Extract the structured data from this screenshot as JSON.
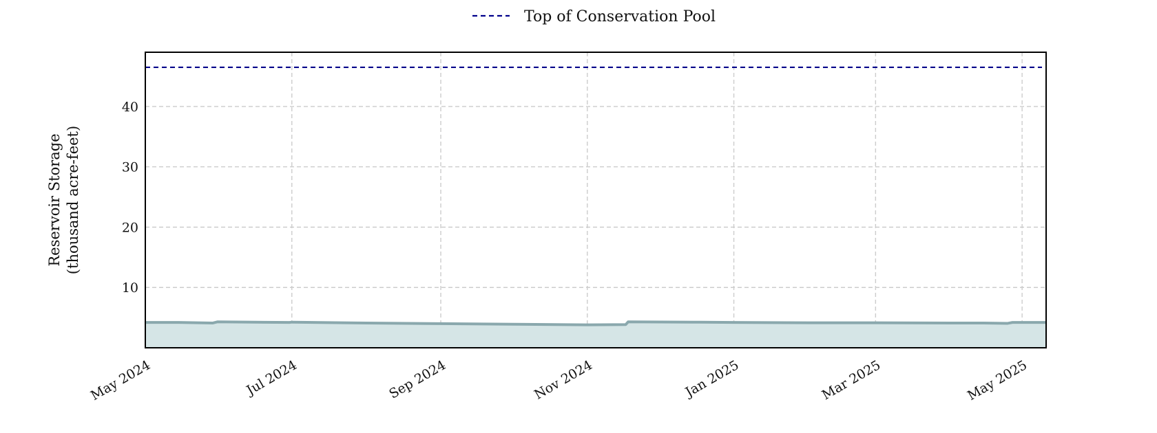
{
  "chart_data": {
    "type": "area",
    "title": "",
    "ylabel_line1": "Reservoir Storage",
    "ylabel_line2": "(thousand acre-feet)",
    "xlabel": "",
    "xlim": [
      "2024-05-01",
      "2025-05-11"
    ],
    "ylim": [
      0,
      49
    ],
    "yticks": [
      10,
      20,
      30,
      40
    ],
    "xticks": [
      {
        "date": "2024-05-01",
        "label": "May 2024"
      },
      {
        "date": "2024-07-01",
        "label": "Jul 2024"
      },
      {
        "date": "2024-09-01",
        "label": "Sep 2024"
      },
      {
        "date": "2024-11-01",
        "label": "Nov 2024"
      },
      {
        "date": "2025-01-01",
        "label": "Jan 2025"
      },
      {
        "date": "2025-03-01",
        "label": "Mar 2025"
      },
      {
        "date": "2025-05-01",
        "label": "May 2025"
      }
    ],
    "grid": true,
    "legend_position": "top-center",
    "series": [
      {
        "kind": "storage",
        "color": "#8aa8ad",
        "fill": "#d5e5e6",
        "points": [
          {
            "x": "2024-05-01",
            "y": 4.2
          },
          {
            "x": "2024-05-15",
            "y": 4.2
          },
          {
            "x": "2024-05-29",
            "y": 4.1
          },
          {
            "x": "2024-05-31",
            "y": 4.3
          },
          {
            "x": "2024-06-30",
            "y": 4.2
          },
          {
            "x": "2024-07-01",
            "y": 4.25
          },
          {
            "x": "2024-08-01",
            "y": 4.1
          },
          {
            "x": "2024-09-01",
            "y": 4.0
          },
          {
            "x": "2024-10-01",
            "y": 3.9
          },
          {
            "x": "2024-11-01",
            "y": 3.8
          },
          {
            "x": "2024-11-17",
            "y": 3.85
          },
          {
            "x": "2024-11-18",
            "y": 4.3
          },
          {
            "x": "2024-12-15",
            "y": 4.25
          },
          {
            "x": "2025-01-01",
            "y": 4.2
          },
          {
            "x": "2025-02-01",
            "y": 4.15
          },
          {
            "x": "2025-03-01",
            "y": 4.15
          },
          {
            "x": "2025-04-01",
            "y": 4.1
          },
          {
            "x": "2025-04-15",
            "y": 4.1
          },
          {
            "x": "2025-04-25",
            "y": 4.05
          },
          {
            "x": "2025-04-27",
            "y": 4.2
          },
          {
            "x": "2025-05-11",
            "y": 4.2
          }
        ]
      },
      {
        "kind": "pool",
        "name": "Top of Conservation Pool",
        "color": "#00008b",
        "style": "dashed",
        "value": 46.5
      }
    ]
  }
}
